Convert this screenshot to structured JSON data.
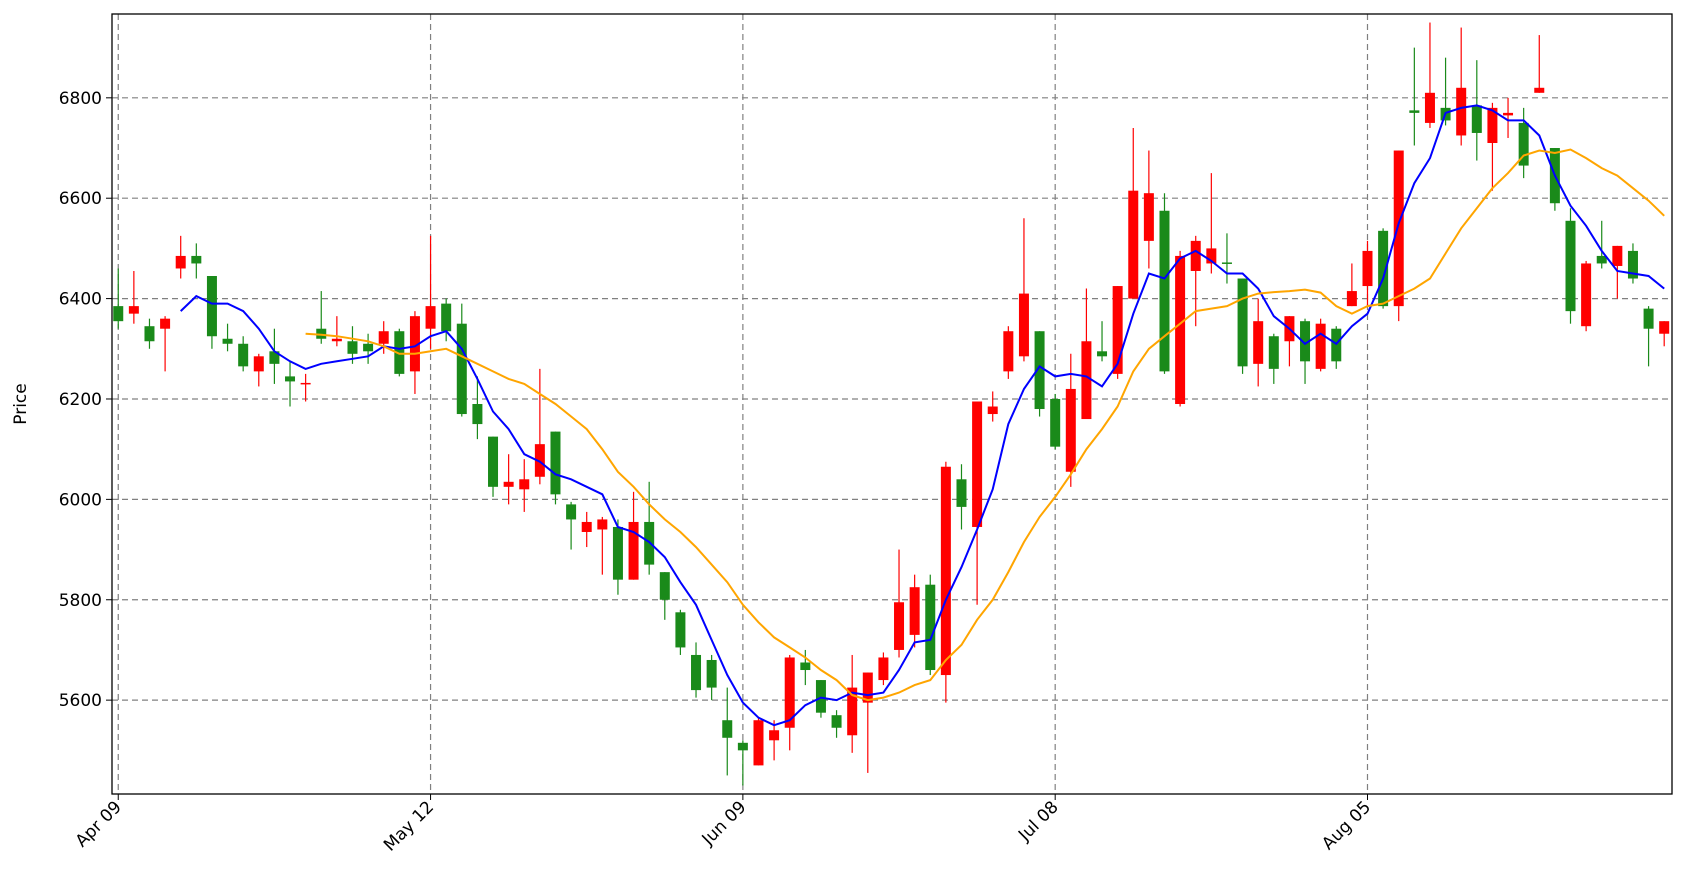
{
  "chart_data": {
    "type": "candlestick",
    "ylabel": "Price",
    "categories": [
      "Apr 09",
      null,
      null,
      null,
      null,
      null,
      null,
      null,
      null,
      null,
      null,
      null,
      null,
      null,
      null,
      null,
      null,
      null,
      null,
      null,
      "May 12",
      null,
      null,
      null,
      null,
      null,
      null,
      null,
      null,
      null,
      null,
      null,
      null,
      null,
      null,
      null,
      null,
      null,
      null,
      null,
      "Jun 09",
      null,
      null,
      null,
      null,
      null,
      null,
      null,
      null,
      null,
      null,
      null,
      null,
      null,
      null,
      null,
      null,
      null,
      null,
      null,
      "Jul 08",
      null,
      null,
      null,
      null,
      null,
      null,
      null,
      null,
      null,
      null,
      null,
      null,
      null,
      null,
      null,
      null,
      null,
      null,
      null,
      "Aug 05",
      null,
      null,
      null,
      null,
      null,
      null,
      null,
      null,
      null,
      null,
      null,
      null,
      null,
      null,
      null,
      null,
      null,
      null,
      null
    ],
    "open": [
      6385,
      6370,
      6345,
      6340,
      6460,
      6485,
      6445,
      6320,
      6310,
      6255,
      6295,
      6245,
      6230,
      6340,
      6315,
      6315,
      6310,
      6310,
      6335,
      6255,
      6340,
      6390,
      6350,
      6190,
      6125,
      6025,
      6020,
      6045,
      6135,
      5990,
      5935,
      5940,
      5945,
      5840,
      5955,
      5855,
      5775,
      5690,
      5680,
      5560,
      5515,
      5470,
      5520,
      5545,
      5675,
      5640,
      5570,
      5530,
      5595,
      5640,
      5700,
      5730,
      5830,
      5650,
      6040,
      5945,
      6170,
      6255,
      6285,
      6335,
      6200,
      6055,
      6160,
      6295,
      6250,
      6400,
      6515,
      6575,
      6190,
      6455,
      6470,
      6472,
      6440,
      6270,
      6325,
      6315,
      6355,
      6260,
      6340,
      6385,
      6425,
      6535,
      6385,
      6775,
      6750,
      6780,
      6725,
      6785,
      6710,
      6765,
      6750,
      6810,
      6700,
      6555,
      6345,
      6485,
      6465,
      6495,
      6380,
      6330
    ],
    "high": [
      6460,
      6455,
      6360,
      6365,
      6525,
      6510,
      6445,
      6350,
      6325,
      6290,
      6340,
      6275,
      6250,
      6415,
      6365,
      6345,
      6330,
      6355,
      6340,
      6375,
      6525,
      6400,
      6390,
      6245,
      6125,
      6090,
      6080,
      6260,
      6135,
      5995,
      5975,
      5965,
      5960,
      6015,
      6035,
      5855,
      5780,
      5715,
      5690,
      5625,
      5520,
      5565,
      5560,
      5690,
      5700,
      5640,
      5580,
      5690,
      5655,
      5695,
      5900,
      5850,
      5850,
      6075,
      6070,
      6195,
      6215,
      6345,
      6560,
      6335,
      6210,
      6290,
      6420,
      6355,
      6425,
      6740,
      6695,
      6610,
      6495,
      6525,
      6650,
      6530,
      6440,
      6400,
      6330,
      6365,
      6360,
      6360,
      6345,
      6470,
      6515,
      6540,
      6695,
      6900,
      6950,
      6880,
      6940,
      6875,
      6790,
      6800,
      6780,
      6925,
      6700,
      6580,
      6475,
      6555,
      6505,
      6510,
      6385,
      6355
    ],
    "low": [
      6340,
      6350,
      6300,
      6255,
      6440,
      6440,
      6300,
      6295,
      6255,
      6225,
      6230,
      6185,
      6195,
      6310,
      6305,
      6270,
      6270,
      6290,
      6245,
      6210,
      6300,
      6315,
      6165,
      6120,
      6005,
      5990,
      5975,
      6030,
      5990,
      5900,
      5905,
      5850,
      5810,
      5840,
      5850,
      5760,
      5690,
      5605,
      5600,
      5450,
      5430,
      5470,
      5480,
      5500,
      5630,
      5565,
      5525,
      5495,
      5455,
      5630,
      5685,
      5705,
      5650,
      5595,
      5940,
      5790,
      6155,
      6240,
      6275,
      6165,
      6100,
      6025,
      6160,
      6275,
      6240,
      6400,
      6460,
      6250,
      6185,
      6345,
      6450,
      6430,
      6250,
      6225,
      6230,
      6265,
      6230,
      6255,
      6260,
      6385,
      6385,
      6380,
      6355,
      6705,
      6740,
      6745,
      6705,
      6675,
      6615,
      6720,
      6640,
      6810,
      6575,
      6350,
      6335,
      6460,
      6400,
      6430,
      6265,
      6305
    ],
    "close": [
      6355,
      6385,
      6315,
      6360,
      6485,
      6470,
      6325,
      6310,
      6265,
      6285,
      6270,
      6235,
      6232,
      6320,
      6320,
      6290,
      6295,
      6335,
      6250,
      6365,
      6385,
      6335,
      6170,
      6150,
      6025,
      6035,
      6040,
      6110,
      6010,
      5960,
      5955,
      5960,
      5840,
      5955,
      5870,
      5800,
      5705,
      5620,
      5625,
      5525,
      5500,
      5560,
      5540,
      5685,
      5660,
      5575,
      5545,
      5625,
      5655,
      5685,
      5795,
      5825,
      5660,
      6065,
      5985,
      6195,
      6185,
      6335,
      6410,
      6180,
      6105,
      6220,
      6315,
      6285,
      6425,
      6615,
      6610,
      6255,
      6485,
      6515,
      6500,
      6470,
      6265,
      6355,
      6260,
      6365,
      6275,
      6350,
      6275,
      6415,
      6495,
      6385,
      6695,
      6770,
      6810,
      6755,
      6820,
      6730,
      6780,
      6770,
      6665,
      6820,
      6590,
      6375,
      6470,
      6470,
      6505,
      6440,
      6340,
      6355
    ],
    "up_color": "#ff0000",
    "down_color": "#1a8a1a",
    "lines": [
      {
        "color": "#0000ff",
        "values": [
          null,
          null,
          null,
          null,
          6375,
          6405,
          6390,
          6390,
          6375,
          6340,
          6295,
          6275,
          6260,
          6270,
          6275,
          6280,
          6285,
          6305,
          6300,
          6305,
          6325,
          6335,
          6300,
          6240,
          6175,
          6140,
          6090,
          6075,
          6050,
          6040,
          6025,
          6010,
          5945,
          5935,
          5915,
          5885,
          5835,
          5790,
          5720,
          5650,
          5595,
          5565,
          5550,
          5560,
          5590,
          5605,
          5600,
          5615,
          5610,
          5615,
          5660,
          5715,
          5720,
          5800,
          5865,
          5940,
          6020,
          6150,
          6220,
          6265,
          6245,
          6250,
          6245,
          6225,
          6270,
          6370,
          6450,
          6440,
          6480,
          6495,
          6475,
          6450,
          6450,
          6420,
          6365,
          6340,
          6310,
          6330,
          6310,
          6345,
          6370,
          6440,
          6550,
          6630,
          6680,
          6770,
          6780,
          6785,
          6775,
          6755,
          6755,
          6725,
          6645,
          6585,
          6545,
          6495,
          6455,
          6450,
          6445,
          6420
        ]
      },
      {
        "color": "#ffa500",
        "values": [
          null,
          null,
          null,
          null,
          null,
          null,
          null,
          null,
          null,
          null,
          null,
          null,
          6330,
          6328,
          6325,
          6320,
          6315,
          6305,
          6290,
          6290,
          6295,
          6300,
          6285,
          6270,
          6255,
          6240,
          6230,
          6210,
          6190,
          6165,
          6140,
          6100,
          6055,
          6025,
          5990,
          5960,
          5935,
          5905,
          5870,
          5835,
          5790,
          5755,
          5725,
          5705,
          5685,
          5660,
          5640,
          5610,
          5600,
          5605,
          5615,
          5630,
          5640,
          5680,
          5710,
          5760,
          5800,
          5855,
          5915,
          5965,
          6005,
          6050,
          6100,
          6140,
          6185,
          6255,
          6300,
          6325,
          6350,
          6375,
          6380,
          6385,
          6400,
          6410,
          6413,
          6415,
          6418,
          6412,
          6385,
          6370,
          6385,
          6390,
          6405,
          6420,
          6440,
          6490,
          6540,
          6580,
          6620,
          6650,
          6685,
          6695,
          6690,
          6697,
          6680,
          6660,
          6645,
          6620,
          6595,
          6565
        ]
      }
    ],
    "xlim": [
      -0.4,
      99.5
    ],
    "ylim": [
      5413,
      6967
    ],
    "yticks": [
      5600,
      5800,
      6000,
      6200,
      6400,
      6600,
      6800
    ],
    "grid": true
  }
}
